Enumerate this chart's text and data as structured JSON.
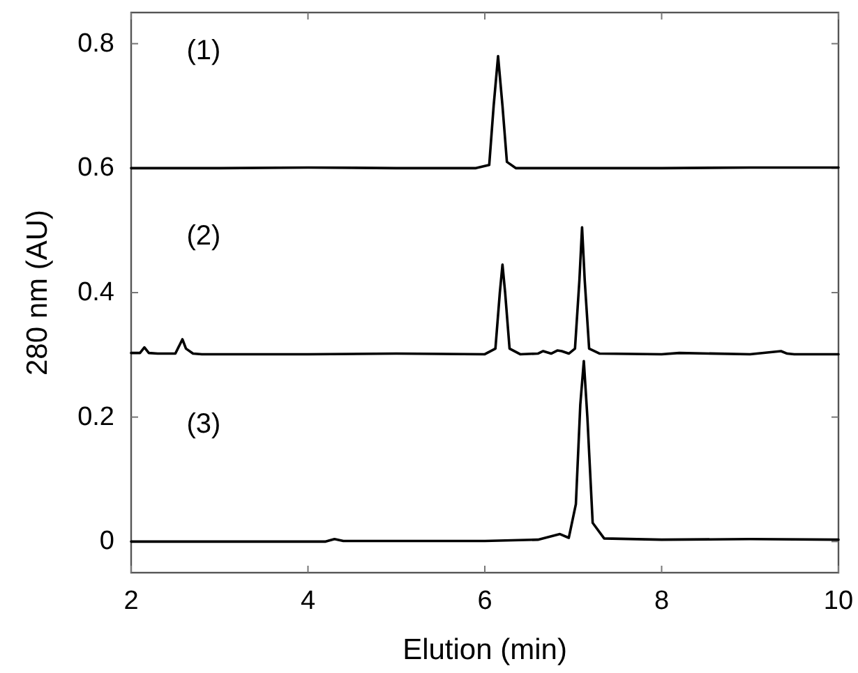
{
  "chart_data": {
    "type": "line",
    "xlabel": "Elution (min)",
    "ylabel": "280 nm (AU)",
    "xlim": [
      2,
      10
    ],
    "ylim": [
      -0.05,
      0.85
    ],
    "xticks": [
      2,
      4,
      6,
      8,
      10
    ],
    "yticks": [
      0,
      0.2,
      0.4,
      0.6,
      0.8
    ],
    "grid": false,
    "marker": "none",
    "line_style": "solid",
    "annotations": [
      "(1)",
      "(2)",
      "(3)"
    ],
    "series": [
      {
        "color": "#000000",
        "x": [
          2,
          3,
          4,
          5,
          5.9,
          6.05,
          6.1,
          6.15,
          6.2,
          6.25,
          6.35,
          7,
          8,
          9,
          10
        ],
        "values": [
          0.6,
          0.6,
          0.601,
          0.6,
          0.6,
          0.605,
          0.7,
          0.78,
          0.7,
          0.61,
          0.6,
          0.6,
          0.6,
          0.601,
          0.601
        ]
      },
      {
        "color": "#000000",
        "x": [
          2,
          2.1,
          2.15,
          2.2,
          2.3,
          2.5,
          2.58,
          2.62,
          2.7,
          2.8,
          4,
          5,
          6,
          6.12,
          6.17,
          6.2,
          6.23,
          6.28,
          6.4,
          6.6,
          6.66,
          6.75,
          6.82,
          6.87,
          6.95,
          7.02,
          7.07,
          7.1,
          7.13,
          7.18,
          7.3,
          8,
          8.2,
          9,
          9.35,
          9.42,
          9.5,
          10
        ],
        "values": [
          0.303,
          0.303,
          0.312,
          0.303,
          0.302,
          0.302,
          0.325,
          0.31,
          0.302,
          0.301,
          0.301,
          0.302,
          0.301,
          0.31,
          0.4,
          0.445,
          0.4,
          0.31,
          0.301,
          0.302,
          0.306,
          0.302,
          0.307,
          0.306,
          0.302,
          0.31,
          0.42,
          0.505,
          0.42,
          0.31,
          0.302,
          0.301,
          0.303,
          0.301,
          0.306,
          0.302,
          0.301,
          0.301
        ]
      },
      {
        "color": "#000000",
        "x": [
          2,
          3,
          4,
          4.2,
          4.3,
          4.4,
          5,
          6,
          6.6,
          6.85,
          6.95,
          7.03,
          7.08,
          7.12,
          7.16,
          7.22,
          7.35,
          8,
          9,
          10
        ],
        "values": [
          0,
          0,
          0,
          0,
          0.004,
          0.001,
          0.001,
          0.001,
          0.003,
          0.012,
          0.006,
          0.06,
          0.22,
          0.29,
          0.2,
          0.03,
          0.005,
          0.003,
          0.004,
          0.003
        ]
      }
    ]
  }
}
